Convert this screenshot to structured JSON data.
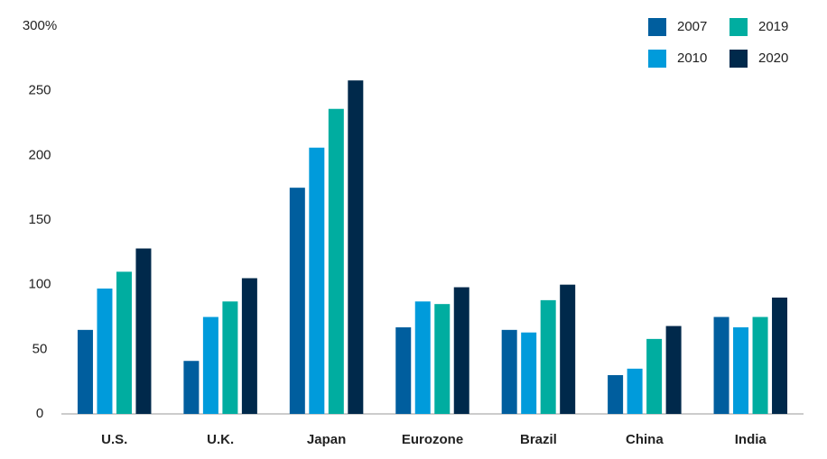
{
  "chart_data": {
    "type": "bar",
    "categories": [
      "U.S.",
      "U.K.",
      "Japan",
      "Eurozone",
      "Brazil",
      "China",
      "India"
    ],
    "series": [
      {
        "name": "2007",
        "color": "#005e9e",
        "values": [
          65,
          41,
          175,
          67,
          65,
          30,
          75
        ]
      },
      {
        "name": "2010",
        "color": "#009bdb",
        "values": [
          97,
          75,
          206,
          87,
          63,
          35,
          67
        ]
      },
      {
        "name": "2019",
        "color": "#00ada0",
        "values": [
          110,
          87,
          236,
          85,
          88,
          58,
          75
        ]
      },
      {
        "name": "2020",
        "color": "#00294b",
        "values": [
          128,
          105,
          258,
          98,
          100,
          68,
          90
        ]
      }
    ],
    "ylim": [
      0,
      300
    ],
    "yticks": [
      0,
      50,
      100,
      150,
      200,
      250,
      {
        "value": 300,
        "label": "300%"
      }
    ],
    "grid": false,
    "legend": "top-right"
  }
}
